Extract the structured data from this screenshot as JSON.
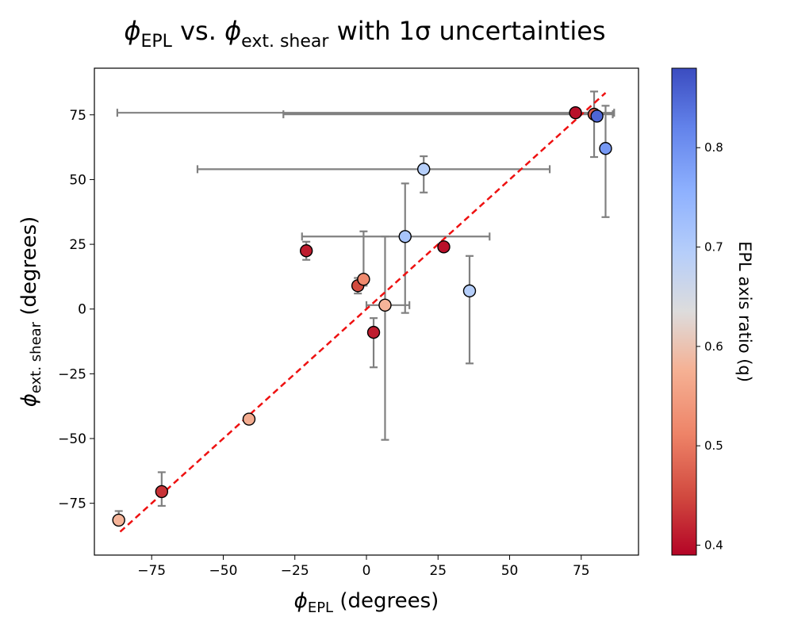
{
  "chart_data": {
    "type": "scatter",
    "title": {
      "prefix": "ϕ",
      "sub1": "EPL",
      "middle": " vs. ",
      "prefix2": "ϕ",
      "sub2": "ext. shear",
      "suffix": " with 1σ uncertainties"
    },
    "xlabel": {
      "symbol": "ϕ",
      "sub": "EPL",
      "unit": " (degrees)"
    },
    "ylabel": {
      "symbol": "ϕ",
      "sub": "ext. shear",
      "unit": " (degrees)"
    },
    "colorbar_label": "EPL axis ratio (q)",
    "xlim": [
      -95,
      95
    ],
    "ylim": [
      -95,
      93
    ],
    "xticks": [
      -75,
      -50,
      -25,
      0,
      25,
      50,
      75
    ],
    "yticks": [
      -75,
      -50,
      -25,
      0,
      25,
      50,
      75
    ],
    "xtick_labels": [
      "−75",
      "−50",
      "−25",
      "0",
      "25",
      "50",
      "75"
    ],
    "ytick_labels": [
      "−75",
      "−50",
      "−25",
      "0",
      "25",
      "50",
      "75"
    ],
    "colorbar": {
      "range": [
        0.39,
        0.88
      ],
      "ticks": [
        0.4,
        0.5,
        0.6,
        0.7,
        0.8
      ],
      "tick_labels": [
        "0.4",
        "0.5",
        "0.6",
        "0.7",
        "0.8"
      ],
      "colormap": "coolwarm_reversed"
    },
    "reference_line": {
      "label": "y = x",
      "x": [
        -86,
        83.5
      ],
      "color": "#ee1111"
    },
    "points": [
      {
        "x": -86.5,
        "y": -81.5,
        "xerr": [
          0,
          0
        ],
        "yerr": [
          1.5,
          3.5
        ],
        "q": 0.57
      },
      {
        "x": -71.5,
        "y": -70.5,
        "xerr": [
          0,
          0
        ],
        "yerr": [
          5.5,
          7.5
        ],
        "q": 0.43
      },
      {
        "x": -41.0,
        "y": -42.5,
        "xerr": [
          0,
          0
        ],
        "yerr": [
          0,
          0
        ],
        "q": 0.56
      },
      {
        "x": -21.0,
        "y": 22.5,
        "xerr": [
          0,
          0
        ],
        "yerr": [
          3.5,
          3.5
        ],
        "q": 0.41
      },
      {
        "x": -3.0,
        "y": 9.0,
        "xerr": [
          1.0,
          1.0
        ],
        "yerr": [
          3.0,
          3.0
        ],
        "q": 0.45
      },
      {
        "x": -1.0,
        "y": 11.5,
        "xerr": [
          0,
          0
        ],
        "yerr": [
          2.5,
          18.5
        ],
        "q": 0.52
      },
      {
        "x": 2.5,
        "y": -9.0,
        "xerr": [
          0,
          0
        ],
        "yerr": [
          13.5,
          5.5
        ],
        "q": 0.41
      },
      {
        "x": 6.5,
        "y": 1.5,
        "xerr": [
          6.5,
          8.5
        ],
        "yerr": [
          52.0,
          26.5
        ],
        "q": 0.57
      },
      {
        "x": 13.5,
        "y": 28.0,
        "xerr": [
          36.0,
          29.5
        ],
        "yerr": [
          29.5,
          20.5
        ],
        "q": 0.72
      },
      {
        "x": 20.0,
        "y": 54.0,
        "xerr": [
          79.0,
          44.0
        ],
        "yerr": [
          9.0,
          5.0
        ],
        "q": 0.7
      },
      {
        "x": 27.0,
        "y": 24.0,
        "xerr": [
          0,
          0
        ],
        "yerr": [
          0,
          0
        ],
        "q": 0.4
      },
      {
        "x": 36.0,
        "y": 7.0,
        "xerr": [
          0,
          0
        ],
        "yerr": [
          28.0,
          13.5
        ],
        "q": 0.7
      },
      {
        "x": 73.0,
        "y": 75.8,
        "xerr": [
          160.0,
          13.5
        ],
        "yerr": [
          0,
          0
        ],
        "q": 0.4
      },
      {
        "x": 79.5,
        "y": 75.2,
        "xerr": [
          108.5,
          6.5
        ],
        "yerr": [
          16.5,
          8.8
        ],
        "q": 0.47
      },
      {
        "x": 80.5,
        "y": 74.5,
        "xerr": [
          0,
          0
        ],
        "yerr": [
          0,
          0
        ],
        "q": 0.85
      },
      {
        "x": 83.5,
        "y": 62.0,
        "xerr": [
          0,
          0
        ],
        "yerr": [
          26.5,
          16.5
        ],
        "q": 0.79
      }
    ]
  }
}
